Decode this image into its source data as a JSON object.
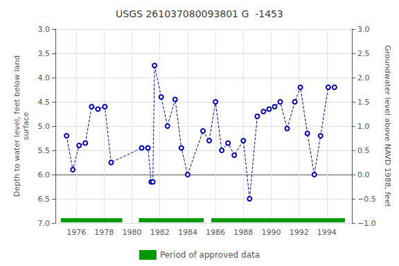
{
  "chart_data": {
    "type": "line",
    "title": "USGS 261037080093801 G  -1453",
    "ylabel": "Depth to water level, feet below land\nsurface",
    "y2label": "Groundwater level above NAVD 1988, feet",
    "xlim": [
      1974.5,
      1995.8
    ],
    "xticks": [
      1976,
      1978,
      1980,
      1982,
      1984,
      1986,
      1988,
      1990,
      1992,
      1994
    ],
    "ylim": [
      7.0,
      3.0
    ],
    "yticks": [
      {
        "value": 3.0,
        "label": "3.0"
      },
      3.5,
      {
        "value": 4.0,
        "label": "4.0"
      },
      4.5,
      {
        "value": 5.0,
        "label": "5.0"
      },
      5.5,
      {
        "value": 6.0,
        "label": "6.0"
      },
      6.5,
      {
        "value": 7.0,
        "label": "7.0"
      }
    ],
    "y2lim": [
      -1.0,
      3.0
    ],
    "y2ticks": [
      {
        "value": 3.0,
        "label": "3.0"
      },
      2.5,
      {
        "value": 2.0,
        "label": "2.0"
      },
      1.5,
      {
        "value": 1.0,
        "label": "1.0"
      },
      0.5,
      {
        "value": 0.0,
        "label": "0.0"
      },
      {
        "value": -0.5,
        "label": "−0.5"
      },
      {
        "value": -1.0,
        "label": "−1.0"
      }
    ],
    "x": [
      1975.3,
      1975.75,
      1976.2,
      1976.65,
      1977.1,
      1977.55,
      1978.05,
      1978.5,
      1980.7,
      1981.15,
      1981.38,
      1981.5,
      1981.62,
      1982.1,
      1982.55,
      1983.1,
      1983.55,
      1984.0,
      1985.1,
      1985.55,
      1986.0,
      1986.45,
      1986.9,
      1987.35,
      1988.0,
      1988.45,
      1989.0,
      1989.45,
      1989.85,
      1990.25,
      1990.65,
      1991.15,
      1991.7,
      1992.1,
      1992.6,
      1993.1,
      1993.55,
      1994.1,
      1994.55
    ],
    "series": [
      {
        "values": [
          5.2,
          5.9,
          5.4,
          5.35,
          4.6,
          4.65,
          4.6,
          5.75,
          5.45,
          5.45,
          6.15,
          6.15,
          3.75,
          4.4,
          5.0,
          4.45,
          5.45,
          6.0,
          5.1,
          5.3,
          4.5,
          5.5,
          5.35,
          5.6,
          5.3,
          6.5,
          4.8,
          4.7,
          4.65,
          4.6,
          4.5,
          5.05,
          4.5,
          4.2,
          5.15,
          6.0,
          5.2,
          4.2,
          4.2
        ],
        "color": "#0000bb",
        "line_style": "dashed",
        "marker": "circle"
      }
    ],
    "periods": {
      "name": "Period of approved data",
      "color": "#009900",
      "ranges": [
        [
          1974.9,
          1979.3
        ],
        [
          1980.5,
          1985.15
        ],
        [
          1985.7,
          1995.3
        ]
      ]
    },
    "grid": true,
    "legend": "bottom"
  }
}
